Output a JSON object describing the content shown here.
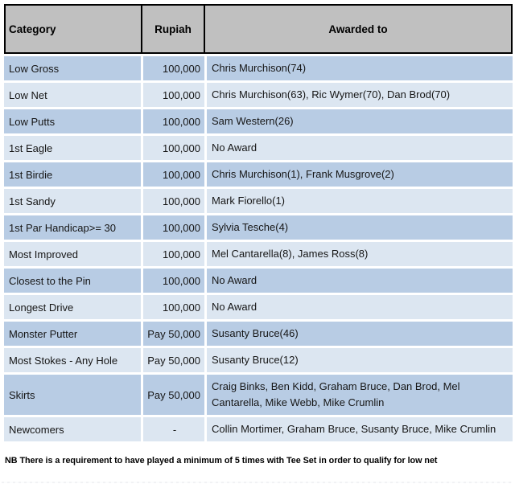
{
  "table": {
    "headers": [
      {
        "label": "Category"
      },
      {
        "label": "Rupiah"
      },
      {
        "label": "Awarded to"
      }
    ],
    "rows": [
      {
        "category": "Low Gross",
        "rupiah": "100,000",
        "awarded": "Chris Murchison(74)"
      },
      {
        "category": "Low Net",
        "rupiah": "100,000",
        "awarded": "Chris Murchison(63), Ric Wymer(70), Dan Brod(70)"
      },
      {
        "category": "Low Putts",
        "rupiah": "100,000",
        "awarded": "Sam Western(26)"
      },
      {
        "category": "1st Eagle",
        "rupiah": "100,000",
        "awarded": "No Award"
      },
      {
        "category": "1st Birdie",
        "rupiah": "100,000",
        "awarded": "Chris Murchison(1), Frank Musgrove(2)"
      },
      {
        "category": "1st Sandy",
        "rupiah": "100,000",
        "awarded": "Mark Fiorello(1)"
      },
      {
        "category": "1st Par Handicap>= 30",
        "rupiah": "100,000",
        "awarded": "Sylvia Tesche(4)"
      },
      {
        "category": "Most Improved",
        "rupiah": "100,000",
        "awarded": "Mel Cantarella(8), James Ross(8)"
      },
      {
        "category": "Closest to the Pin",
        "rupiah": "100,000",
        "awarded": "No Award"
      },
      {
        "category": "Longest Drive",
        "rupiah": "100,000",
        "awarded": "No Award"
      },
      {
        "category": "Monster Putter",
        "rupiah": "Pay 50,000",
        "awarded": "Susanty Bruce(46)"
      },
      {
        "category": "Most Stokes - Any Hole",
        "rupiah": "Pay 50,000",
        "awarded": "Susanty Bruce(12)"
      },
      {
        "category": "Skirts",
        "rupiah": "Pay 50,000",
        "awarded": "Craig Binks, Ben Kidd, Graham Bruce, Dan Brod, Mel Cantarella, Mike Webb, Mike Crumlin"
      },
      {
        "category": "Newcomers",
        "rupiah": "-",
        "awarded": "Collin Mortimer, Graham Bruce, Susanty Bruce, Mike Crumlin"
      }
    ]
  },
  "note": "NB There is a requirement to have played a minimum of 5 times with Tee Set in order to qualify for low net",
  "colors": {
    "header-bg": "#c0c0c0",
    "row-dark": "#b8cce4",
    "row-light": "#dce6f1",
    "border": "#000000",
    "text": "#000000"
  }
}
